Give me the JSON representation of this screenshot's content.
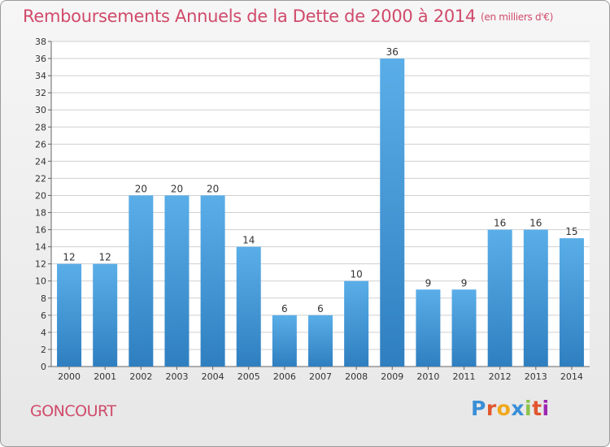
{
  "chart_data": {
    "type": "bar",
    "title": "Remboursements Annuels de la Dette de 2000 à 2014",
    "unit_note": "(en milliers d'€)",
    "categories": [
      "2000",
      "2001",
      "2002",
      "2003",
      "2004",
      "2005",
      "2006",
      "2007",
      "2008",
      "2009",
      "2010",
      "2011",
      "2012",
      "2013",
      "2014"
    ],
    "values": [
      12,
      12,
      20,
      20,
      20,
      14,
      6,
      6,
      10,
      36,
      9,
      9,
      16,
      16,
      15
    ],
    "xlabel": "",
    "ylabel": "",
    "ylim": [
      0,
      38
    ],
    "yticks": [
      0,
      2,
      4,
      6,
      8,
      10,
      12,
      14,
      16,
      18,
      20,
      22,
      24,
      26,
      28,
      30,
      32,
      34,
      36,
      38
    ],
    "grid": true,
    "bar_color": "#4a9fdd",
    "bar_color_dark": "#2f7fc0"
  },
  "footer": {
    "commune": "GONCOURT",
    "logo_text": "Proxiti",
    "logo_colors": [
      "#3a8fd6",
      "#e0562e",
      "#f0a81a",
      "#3a8fd6",
      "#8bc34a",
      "#e0562e",
      "#9c27b0"
    ]
  },
  "colors": {
    "title": "#d04a6a",
    "text": "#333333",
    "grid": "#cfcfcf"
  }
}
